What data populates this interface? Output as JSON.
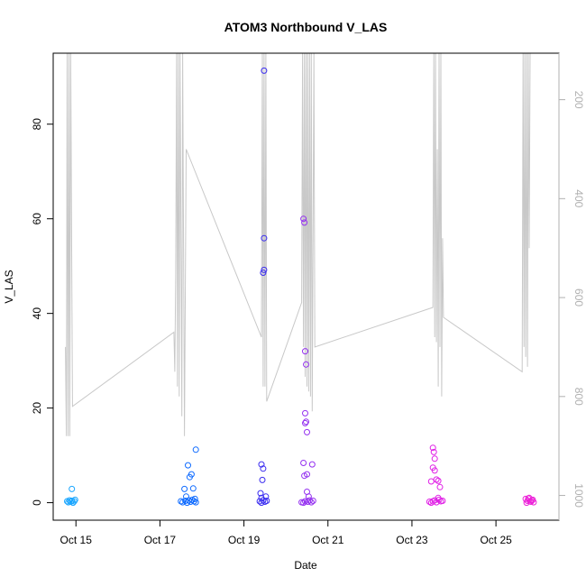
{
  "chart_data": {
    "type": "scatter",
    "title": "ATOM3 Northbound V_LAS",
    "xlabel": "Date",
    "ylabel": "V_LAS",
    "ylim": [
      -3.7,
      95
    ],
    "xlim": [
      "2023-10-14 11:00",
      "2023-10-26 12:00"
    ],
    "x_ticks": [
      {
        "date": "2023-10-15 00:00",
        "label": "Oct 15"
      },
      {
        "date": "2023-10-17 00:00",
        "label": "Oct 17"
      },
      {
        "date": "2023-10-19 00:00",
        "label": "Oct 19"
      },
      {
        "date": "2023-10-21 00:00",
        "label": "Oct 21"
      },
      {
        "date": "2023-10-23 00:00",
        "label": "Oct 23"
      },
      {
        "date": "2023-10-25 00:00",
        "label": "Oct 25"
      }
    ],
    "y_ticks": [
      0,
      20,
      40,
      60,
      80
    ],
    "right_axis": {
      "color": "#b0b0b0",
      "reversed": true,
      "range": [
        106,
        1050
      ],
      "ticks": [
        200,
        400,
        600,
        800,
        1000
      ]
    },
    "grid": false,
    "legend": "none",
    "colors": {
      "depth_line": "#c8c8c8",
      "points_gradient": [
        "#1ab0ff",
        "#0a5aff",
        "#2626f0",
        "#8a2cf0",
        "#e020e6"
      ]
    },
    "series": [
      {
        "kind": "points",
        "color": "#1aa6ff",
        "points": [
          [
            "2023-10-14 19:00",
            0.3
          ],
          [
            "2023-10-14 19:40",
            0.1
          ],
          [
            "2023-10-14 20:20",
            0.5
          ],
          [
            "2023-10-14 21:00",
            0.2
          ],
          [
            "2023-10-14 21:40",
            0.4
          ],
          [
            "2023-10-14 22:20",
            0.0
          ],
          [
            "2023-10-14 23:00",
            0.3
          ],
          [
            "2023-10-14 23:30",
            0.6
          ],
          [
            "2023-10-14 21:40",
            2.9
          ]
        ]
      },
      {
        "kind": "points",
        "color": "#0f6bff",
        "points": [
          [
            "2023-10-17 14:00",
            2.9
          ],
          [
            "2023-10-17 15:00",
            1.3
          ],
          [
            "2023-10-17 16:00",
            7.9
          ],
          [
            "2023-10-17 17:00",
            5.4
          ],
          [
            "2023-10-17 18:00",
            6.0
          ],
          [
            "2023-10-17 19:00",
            3.0
          ],
          [
            "2023-10-17 20:30",
            11.2
          ],
          [
            "2023-10-17 12:00",
            0.3
          ],
          [
            "2023-10-17 13:00",
            0.1
          ],
          [
            "2023-10-17 14:30",
            0.4
          ],
          [
            "2023-10-17 15:30",
            0.0
          ],
          [
            "2023-10-17 16:30",
            0.5
          ],
          [
            "2023-10-17 17:30",
            0.2
          ],
          [
            "2023-10-17 18:30",
            0.6
          ],
          [
            "2023-10-17 19:30",
            0.3
          ],
          [
            "2023-10-17 20:00",
            0.8
          ],
          [
            "2023-10-17 20:30",
            0.1
          ]
        ]
      },
      {
        "kind": "points",
        "color": "#3a2cf0",
        "points": [
          [
            "2023-10-19 10:00",
            8.1
          ],
          [
            "2023-10-19 11:00",
            7.2
          ],
          [
            "2023-10-19 10:30",
            4.8
          ],
          [
            "2023-10-19 11:30",
            91.3
          ],
          [
            "2023-10-19 11:30",
            55.9
          ],
          [
            "2023-10-19 11:00",
            48.6
          ],
          [
            "2023-10-19 11:30",
            49.2
          ],
          [
            "2023-10-19 09:30",
            2.0
          ],
          [
            "2023-10-19 10:00",
            1.0
          ],
          [
            "2023-10-19 12:30",
            1.3
          ],
          [
            "2023-10-19 09:00",
            0.3
          ],
          [
            "2023-10-19 10:00",
            0.0
          ],
          [
            "2023-10-19 11:00",
            0.5
          ],
          [
            "2023-10-19 12:00",
            0.2
          ],
          [
            "2023-10-19 13:00",
            0.4
          ]
        ]
      },
      {
        "kind": "points",
        "color": "#9430f0",
        "points": [
          [
            "2023-10-20 10:00",
            60.0
          ],
          [
            "2023-10-20 10:30",
            59.2
          ],
          [
            "2023-10-20 11:00",
            32.0
          ],
          [
            "2023-10-20 11:30",
            29.2
          ],
          [
            "2023-10-20 11:00",
            18.9
          ],
          [
            "2023-10-20 11:30",
            17.1
          ],
          [
            "2023-10-20 11:00",
            16.8
          ],
          [
            "2023-10-20 12:00",
            14.9
          ],
          [
            "2023-10-20 10:00",
            8.4
          ],
          [
            "2023-10-20 10:30",
            5.7
          ],
          [
            "2023-10-20 12:00",
            6.0
          ],
          [
            "2023-10-20 15:00",
            8.1
          ],
          [
            "2023-10-20 12:00",
            2.3
          ],
          [
            "2023-10-20 13:00",
            1.3
          ],
          [
            "2023-10-20 09:00",
            0.1
          ],
          [
            "2023-10-20 10:00",
            0.0
          ],
          [
            "2023-10-20 11:00",
            0.3
          ],
          [
            "2023-10-20 12:30",
            0.2
          ],
          [
            "2023-10-20 13:30",
            0.5
          ],
          [
            "2023-10-20 14:30",
            0.1
          ],
          [
            "2023-10-20 15:30",
            0.4
          ]
        ]
      },
      {
        "kind": "points",
        "color": "#e020e6",
        "points": [
          [
            "2023-10-23 12:00",
            11.6
          ],
          [
            "2023-10-23 12:30",
            10.7
          ],
          [
            "2023-10-23 13:00",
            9.3
          ],
          [
            "2023-10-23 12:00",
            7.4
          ],
          [
            "2023-10-23 13:00",
            6.8
          ],
          [
            "2023-10-23 11:00",
            4.5
          ],
          [
            "2023-10-23 14:00",
            4.9
          ],
          [
            "2023-10-23 15:00",
            4.6
          ],
          [
            "2023-10-23 16:00",
            3.3
          ],
          [
            "2023-10-23 15:00",
            1.0
          ],
          [
            "2023-10-23 10:00",
            0.2
          ],
          [
            "2023-10-23 11:00",
            0.0
          ],
          [
            "2023-10-23 12:00",
            0.3
          ],
          [
            "2023-10-23 13:00",
            0.5
          ],
          [
            "2023-10-23 14:00",
            0.1
          ],
          [
            "2023-10-23 15:30",
            0.6
          ],
          [
            "2023-10-23 16:30",
            0.3
          ],
          [
            "2023-10-23 17:30",
            0.4
          ]
        ]
      },
      {
        "kind": "points",
        "color": "#ec22d8",
        "points": [
          [
            "2023-10-25 17:00",
            0.8
          ],
          [
            "2023-10-25 18:00",
            0.4
          ],
          [
            "2023-10-25 19:00",
            1.0
          ],
          [
            "2023-10-25 20:00",
            0.2
          ],
          [
            "2023-10-25 21:00",
            0.6
          ],
          [
            "2023-10-25 17:30",
            0.0
          ],
          [
            "2023-10-25 18:30",
            0.9
          ],
          [
            "2023-10-25 19:30",
            0.3
          ],
          [
            "2023-10-25 20:30",
            0.5
          ],
          [
            "2023-10-25 21:30",
            0.1
          ]
        ]
      }
    ],
    "depth_line": [
      [
        "2023-10-14 18:00",
        700
      ],
      [
        "2023-10-14 18:30",
        880
      ],
      [
        "2023-10-14 19:00",
        106
      ],
      [
        "2023-10-14 19:30",
        880
      ],
      [
        "2023-10-14 20:00",
        106
      ],
      [
        "2023-10-14 20:30",
        880
      ],
      [
        "2023-10-14 21:00",
        106
      ],
      [
        "2023-10-14 22:00",
        820
      ],
      [
        "2023-10-17 08:00",
        670
      ],
      [
        "2023-10-17 08:30",
        750
      ],
      [
        "2023-10-17 09:00",
        550
      ],
      [
        "2023-10-17 09:30",
        106
      ],
      [
        "2023-10-17 10:00",
        780
      ],
      [
        "2023-10-17 10:30",
        106
      ],
      [
        "2023-10-17 11:00",
        800
      ],
      [
        "2023-10-17 11:30",
        106
      ],
      [
        "2023-10-17 12:30",
        840
      ],
      [
        "2023-10-17 13:00",
        106
      ],
      [
        "2023-10-17 14:00",
        880
      ],
      [
        "2023-10-17 15:00",
        300
      ],
      [
        "2023-10-19 10:00",
        680
      ],
      [
        "2023-10-19 10:30",
        106
      ],
      [
        "2023-10-19 11:00",
        780
      ],
      [
        "2023-10-19 11:30",
        106
      ],
      [
        "2023-10-19 12:00",
        780
      ],
      [
        "2023-10-19 12:30",
        106
      ],
      [
        "2023-10-19 13:00",
        810
      ],
      [
        "2023-10-20 09:00",
        610
      ],
      [
        "2023-10-20 09:30",
        106
      ],
      [
        "2023-10-20 10:00",
        700
      ],
      [
        "2023-10-20 10:30",
        106
      ],
      [
        "2023-10-20 11:00",
        760
      ],
      [
        "2023-10-20 11:30",
        106
      ],
      [
        "2023-10-20 12:00",
        780
      ],
      [
        "2023-10-20 12:30",
        106
      ],
      [
        "2023-10-20 13:00",
        790
      ],
      [
        "2023-10-20 13:30",
        106
      ],
      [
        "2023-10-20 14:00",
        800
      ],
      [
        "2023-10-20 14:30",
        106
      ],
      [
        "2023-10-20 15:00",
        830
      ],
      [
        "2023-10-20 16:00",
        106
      ],
      [
        "2023-10-20 16:30",
        700
      ],
      [
        "2023-10-23 12:00",
        620
      ],
      [
        "2023-10-23 12:30",
        106
      ],
      [
        "2023-10-23 13:00",
        680
      ],
      [
        "2023-10-23 13:30",
        106
      ],
      [
        "2023-10-23 14:00",
        690
      ],
      [
        "2023-10-23 14:30",
        300
      ],
      [
        "2023-10-23 15:00",
        780
      ],
      [
        "2023-10-23 15:30",
        106
      ],
      [
        "2023-10-23 16:00",
        700
      ],
      [
        "2023-10-23 16:30",
        106
      ],
      [
        "2023-10-23 17:00",
        800
      ],
      [
        "2023-10-23 17:30",
        480
      ],
      [
        "2023-10-23 18:00",
        640
      ],
      [
        "2023-10-25 15:00",
        750
      ],
      [
        "2023-10-25 15:30",
        106
      ],
      [
        "2023-10-25 16:00",
        700
      ],
      [
        "2023-10-25 16:30",
        106
      ],
      [
        "2023-10-25 17:00",
        720
      ],
      [
        "2023-10-25 17:30",
        106
      ],
      [
        "2023-10-25 18:00",
        740
      ],
      [
        "2023-10-25 18:30",
        106
      ],
      [
        "2023-10-25 19:00",
        500
      ],
      [
        "2023-10-25 19:30",
        106
      ]
    ]
  }
}
